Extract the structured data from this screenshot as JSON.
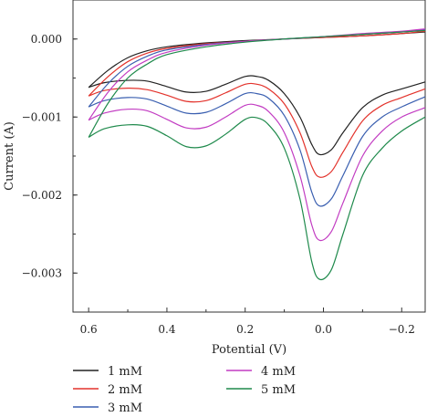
{
  "chart_data": {
    "type": "line",
    "xlabel": "Potential (V)",
    "ylabel": "Current (A)",
    "x_reversed": true,
    "xlim": [
      0.64,
      -0.26
    ],
    "ylim": [
      -0.0035,
      0.0005
    ],
    "x_ticks": [
      0.6,
      0.4,
      0.2,
      0.0,
      -0.2
    ],
    "x_tick_labels": [
      "0.6",
      "0.4",
      "0.2",
      "0.0",
      "−0.2"
    ],
    "y_ticks": [
      0.0,
      -0.001,
      -0.002,
      -0.003
    ],
    "y_tick_labels": [
      "0.000",
      "−0.001",
      "−0.002",
      "−0.003"
    ],
    "grid": false,
    "legend_position": "bottom",
    "series": [
      {
        "name": "1 mM",
        "color": "#222222",
        "cathodic": [
          [
            0.6,
            -0.00062
          ],
          [
            0.56,
            -0.00056
          ],
          [
            0.5,
            -0.00053
          ],
          [
            0.45,
            -0.00054
          ],
          [
            0.4,
            -0.00061
          ],
          [
            0.35,
            -0.00068
          ],
          [
            0.3,
            -0.00067
          ],
          [
            0.25,
            -0.00058
          ],
          [
            0.2,
            -0.00048
          ],
          [
            0.17,
            -0.00048
          ],
          [
            0.14,
            -0.00053
          ],
          [
            0.1,
            -0.0007
          ],
          [
            0.06,
            -0.001
          ],
          [
            0.03,
            -0.00135
          ],
          [
            0.01,
            -0.00148
          ],
          [
            -0.02,
            -0.00142
          ],
          [
            -0.05,
            -0.0012
          ],
          [
            -0.1,
            -0.00088
          ],
          [
            -0.15,
            -0.00072
          ],
          [
            -0.2,
            -0.00064
          ],
          [
            -0.26,
            -0.00055
          ]
        ],
        "anodic": [
          [
            0.6,
            -0.00062
          ],
          [
            0.55,
            -0.0004
          ],
          [
            0.5,
            -0.00024
          ],
          [
            0.45,
            -0.00015
          ],
          [
            0.4,
            -0.0001
          ],
          [
            0.3,
            -5e-05
          ],
          [
            0.2,
            -2e-05
          ],
          [
            0.1,
            0.0
          ],
          [
            0.0,
            2e-05
          ],
          [
            -0.1,
            4e-05
          ],
          [
            -0.2,
            7e-05
          ],
          [
            -0.26,
            9e-05
          ]
        ]
      },
      {
        "name": "2 mM",
        "color": "#e3322b",
        "cathodic": [
          [
            0.6,
            -0.00073
          ],
          [
            0.56,
            -0.00066
          ],
          [
            0.5,
            -0.00063
          ],
          [
            0.45,
            -0.00065
          ],
          [
            0.4,
            -0.00072
          ],
          [
            0.35,
            -0.0008
          ],
          [
            0.3,
            -0.00079
          ],
          [
            0.25,
            -0.00069
          ],
          [
            0.2,
            -0.00058
          ],
          [
            0.17,
            -0.00058
          ],
          [
            0.14,
            -0.00064
          ],
          [
            0.1,
            -0.00083
          ],
          [
            0.06,
            -0.0012
          ],
          [
            0.03,
            -0.00163
          ],
          [
            0.01,
            -0.00177
          ],
          [
            -0.02,
            -0.0017
          ],
          [
            -0.05,
            -0.00145
          ],
          [
            -0.1,
            -0.00105
          ],
          [
            -0.15,
            -0.00085
          ],
          [
            -0.2,
            -0.00075
          ],
          [
            -0.26,
            -0.00064
          ]
        ],
        "anodic": [
          [
            0.6,
            -0.00073
          ],
          [
            0.55,
            -0.00048
          ],
          [
            0.5,
            -0.00029
          ],
          [
            0.45,
            -0.00018
          ],
          [
            0.4,
            -0.00012
          ],
          [
            0.3,
            -6e-05
          ],
          [
            0.2,
            -3e-05
          ],
          [
            0.1,
            0.0
          ],
          [
            0.0,
            2e-05
          ],
          [
            -0.1,
            4e-05
          ],
          [
            -0.2,
            7e-05
          ],
          [
            -0.26,
            0.0001
          ]
        ]
      },
      {
        "name": "3 mM",
        "color": "#3a5fb0",
        "cathodic": [
          [
            0.6,
            -0.00087
          ],
          [
            0.56,
            -0.00079
          ],
          [
            0.5,
            -0.00075
          ],
          [
            0.45,
            -0.00077
          ],
          [
            0.4,
            -0.00086
          ],
          [
            0.35,
            -0.00095
          ],
          [
            0.3,
            -0.00094
          ],
          [
            0.25,
            -0.00083
          ],
          [
            0.2,
            -0.0007
          ],
          [
            0.17,
            -0.0007
          ],
          [
            0.14,
            -0.00076
          ],
          [
            0.1,
            -0.00098
          ],
          [
            0.06,
            -0.00142
          ],
          [
            0.03,
            -0.00196
          ],
          [
            0.01,
            -0.00214
          ],
          [
            -0.02,
            -0.00205
          ],
          [
            -0.05,
            -0.00175
          ],
          [
            -0.1,
            -0.00125
          ],
          [
            -0.15,
            -0.001
          ],
          [
            -0.2,
            -0.00087
          ],
          [
            -0.26,
            -0.00074
          ]
        ],
        "anodic": [
          [
            0.6,
            -0.00087
          ],
          [
            0.55,
            -0.00057
          ],
          [
            0.5,
            -0.00035
          ],
          [
            0.45,
            -0.00022
          ],
          [
            0.4,
            -0.00014
          ],
          [
            0.3,
            -7e-05
          ],
          [
            0.2,
            -3e-05
          ],
          [
            0.1,
            0.0
          ],
          [
            0.0,
            3e-05
          ],
          [
            -0.1,
            6e-05
          ],
          [
            -0.2,
            9e-05
          ],
          [
            -0.26,
            0.00012
          ]
        ]
      },
      {
        "name": "4 mM",
        "color": "#c23cc2",
        "cathodic": [
          [
            0.6,
            -0.00104
          ],
          [
            0.56,
            -0.00095
          ],
          [
            0.5,
            -0.0009
          ],
          [
            0.45,
            -0.00092
          ],
          [
            0.4,
            -0.00103
          ],
          [
            0.35,
            -0.00114
          ],
          [
            0.3,
            -0.00113
          ],
          [
            0.25,
            -0.001
          ],
          [
            0.2,
            -0.00085
          ],
          [
            0.17,
            -0.00085
          ],
          [
            0.14,
            -0.00093
          ],
          [
            0.1,
            -0.0012
          ],
          [
            0.06,
            -0.00175
          ],
          [
            0.03,
            -0.00238
          ],
          [
            0.01,
            -0.00258
          ],
          [
            -0.02,
            -0.00247
          ],
          [
            -0.05,
            -0.0021
          ],
          [
            -0.1,
            -0.0015
          ],
          [
            -0.15,
            -0.00118
          ],
          [
            -0.2,
            -0.001
          ],
          [
            -0.26,
            -0.00088
          ]
        ],
        "anodic": [
          [
            0.6,
            -0.00104
          ],
          [
            0.55,
            -0.00068
          ],
          [
            0.5,
            -0.00042
          ],
          [
            0.45,
            -0.00027
          ],
          [
            0.4,
            -0.00017
          ],
          [
            0.3,
            -8e-05
          ],
          [
            0.2,
            -3e-05
          ],
          [
            0.1,
            0.0
          ],
          [
            0.0,
            3e-05
          ],
          [
            -0.1,
            7e-05
          ],
          [
            -0.2,
            0.0001
          ],
          [
            -0.26,
            0.00013
          ]
        ]
      },
      {
        "name": "5 mM",
        "color": "#1f8a4c",
        "cathodic": [
          [
            0.6,
            -0.00126
          ],
          [
            0.56,
            -0.00115
          ],
          [
            0.5,
            -0.0011
          ],
          [
            0.45,
            -0.00112
          ],
          [
            0.4,
            -0.00124
          ],
          [
            0.35,
            -0.00138
          ],
          [
            0.3,
            -0.00137
          ],
          [
            0.25,
            -0.00122
          ],
          [
            0.2,
            -0.00103
          ],
          [
            0.17,
            -0.00101
          ],
          [
            0.14,
            -0.0011
          ],
          [
            0.1,
            -0.0014
          ],
          [
            0.06,
            -0.00205
          ],
          [
            0.03,
            -0.00285
          ],
          [
            0.01,
            -0.00308
          ],
          [
            -0.02,
            -0.00296
          ],
          [
            -0.05,
            -0.0025
          ],
          [
            -0.1,
            -0.00175
          ],
          [
            -0.15,
            -0.0014
          ],
          [
            -0.2,
            -0.00118
          ],
          [
            -0.26,
            -0.001
          ]
        ],
        "anodic": [
          [
            0.6,
            -0.00126
          ],
          [
            0.55,
            -0.00082
          ],
          [
            0.5,
            -0.0005
          ],
          [
            0.45,
            -0.00032
          ],
          [
            0.4,
            -0.0002
          ],
          [
            0.3,
            -0.0001
          ],
          [
            0.2,
            -4e-05
          ],
          [
            0.1,
            0.0
          ],
          [
            0.0,
            3e-05
          ],
          [
            -0.1,
            6e-05
          ],
          [
            -0.2,
            9e-05
          ],
          [
            -0.26,
            0.00011
          ]
        ]
      }
    ]
  }
}
